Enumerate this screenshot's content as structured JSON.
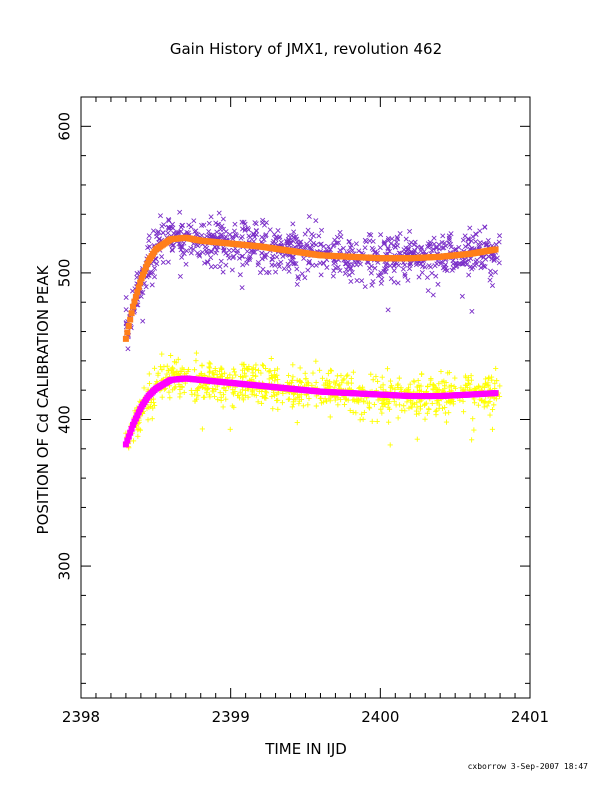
{
  "chart_data": {
    "type": "scatter",
    "title": "Gain History of JMX1, revolution 462",
    "xlabel": "TIME IN IJD",
    "ylabel": "POSITION OF Cd CALIBRATION PEAK",
    "xlim": [
      2398,
      2401
    ],
    "ylim": [
      210,
      620
    ],
    "x_ticks": [
      2398,
      2399,
      2400,
      2401
    ],
    "x_tick_labels": [
      "2398",
      "2399",
      "2400",
      "2401"
    ],
    "x_minor_step": 0.1,
    "y_ticks": [
      300,
      400,
      500,
      600
    ],
    "y_tick_labels": [
      "300",
      "400",
      "500",
      "600"
    ],
    "y_minor_step": 20,
    "grid": false,
    "footer": "cxborrow  3-Sep-2007 18:47",
    "series": [
      {
        "kind": "scatter-x",
        "color": "#7a2ec8",
        "x_range": [
          2398.3,
          2400.8
        ],
        "trend": [
          [
            2398.3,
            460
          ],
          [
            2398.4,
            495
          ],
          [
            2398.5,
            518
          ],
          [
            2398.6,
            525
          ],
          [
            2398.7,
            524
          ],
          [
            2398.8,
            521
          ],
          [
            2399.0,
            520
          ],
          [
            2399.2,
            518
          ],
          [
            2399.4,
            516
          ],
          [
            2399.6,
            513
          ],
          [
            2399.8,
            511
          ],
          [
            2400.0,
            510
          ],
          [
            2400.2,
            511
          ],
          [
            2400.4,
            512
          ],
          [
            2400.6,
            514
          ],
          [
            2400.8,
            517
          ]
        ],
        "scatter_sd": 8
      },
      {
        "kind": "scatter-plus",
        "color": "#ffff00",
        "x_range": [
          2398.3,
          2400.8
        ],
        "trend": [
          [
            2398.3,
            385
          ],
          [
            2398.4,
            408
          ],
          [
            2398.5,
            422
          ],
          [
            2398.6,
            428
          ],
          [
            2398.8,
            428
          ],
          [
            2399.0,
            425
          ],
          [
            2399.2,
            423
          ],
          [
            2399.4,
            422
          ],
          [
            2399.6,
            420
          ],
          [
            2399.8,
            418
          ],
          [
            2400.0,
            417
          ],
          [
            2400.2,
            416
          ],
          [
            2400.4,
            418
          ],
          [
            2400.6,
            420
          ],
          [
            2400.8,
            422
          ]
        ],
        "scatter_sd": 7
      },
      {
        "kind": "fit",
        "color": "#ff7f1a",
        "x_range": [
          2398.3,
          2400.77
        ],
        "trend": [
          [
            2398.3,
            455
          ],
          [
            2398.35,
            478
          ],
          [
            2398.4,
            495
          ],
          [
            2398.45,
            508
          ],
          [
            2398.5,
            516
          ],
          [
            2398.6,
            523
          ],
          [
            2398.7,
            524
          ],
          [
            2398.8,
            522
          ],
          [
            2399.0,
            520
          ],
          [
            2399.2,
            518
          ],
          [
            2399.4,
            515
          ],
          [
            2399.6,
            512
          ],
          [
            2399.8,
            511
          ],
          [
            2400.0,
            510
          ],
          [
            2400.2,
            510
          ],
          [
            2400.4,
            511
          ],
          [
            2400.6,
            513
          ],
          [
            2400.77,
            516
          ]
        ]
      },
      {
        "kind": "fit",
        "color": "#ff00ff",
        "x_range": [
          2398.3,
          2400.77
        ],
        "trend": [
          [
            2398.3,
            383
          ],
          [
            2398.35,
            397
          ],
          [
            2398.4,
            408
          ],
          [
            2398.45,
            416
          ],
          [
            2398.5,
            421
          ],
          [
            2398.6,
            427
          ],
          [
            2398.7,
            428
          ],
          [
            2398.8,
            427
          ],
          [
            2399.0,
            425
          ],
          [
            2399.2,
            423
          ],
          [
            2399.4,
            421
          ],
          [
            2399.6,
            419
          ],
          [
            2399.8,
            418
          ],
          [
            2400.0,
            417
          ],
          [
            2400.2,
            416
          ],
          [
            2400.4,
            416
          ],
          [
            2400.6,
            417
          ],
          [
            2400.77,
            418
          ]
        ]
      }
    ]
  }
}
